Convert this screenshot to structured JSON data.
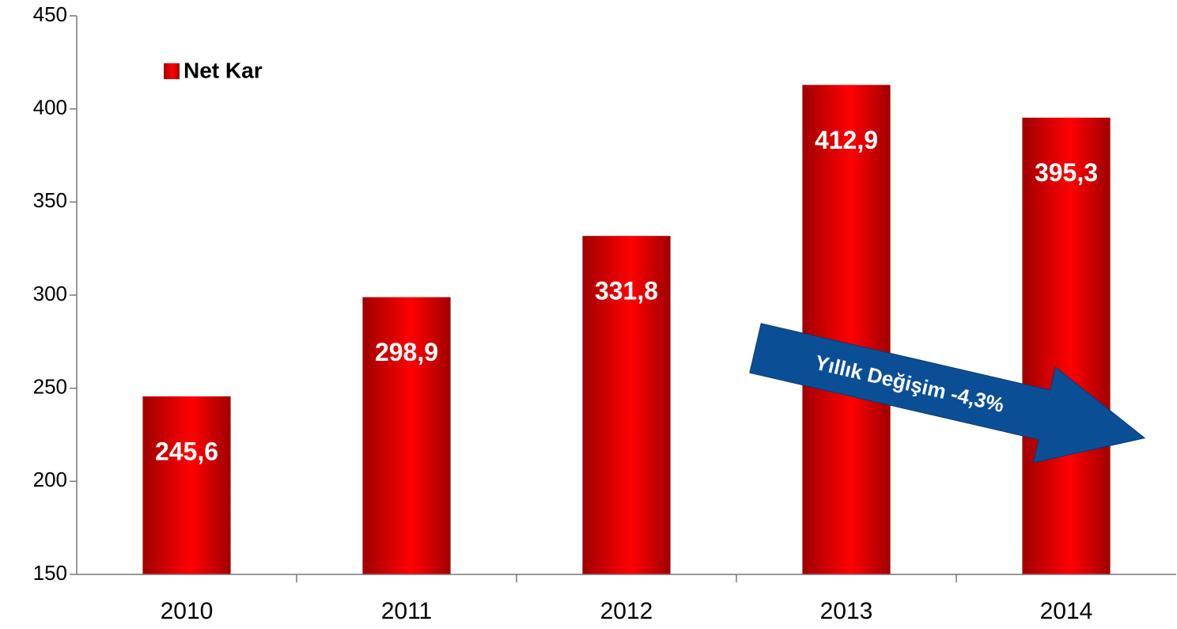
{
  "chart_data": {
    "type": "bar",
    "categories": [
      "2010",
      "2011",
      "2012",
      "2013",
      "2014"
    ],
    "series": [
      {
        "name": "Net Kar",
        "color": "#ff0000",
        "values": [
          245.6,
          298.9,
          331.8,
          412.9,
          395.3
        ],
        "value_labels": [
          "245,6",
          "298,9",
          "331,8",
          "412,9",
          "395,3"
        ]
      }
    ],
    "ylim": [
      150,
      450
    ],
    "yticks": [
      150,
      200,
      250,
      300,
      350,
      400,
      450
    ],
    "legend": "top-left",
    "annotation": "Yıllık Değişim -4,3%"
  }
}
